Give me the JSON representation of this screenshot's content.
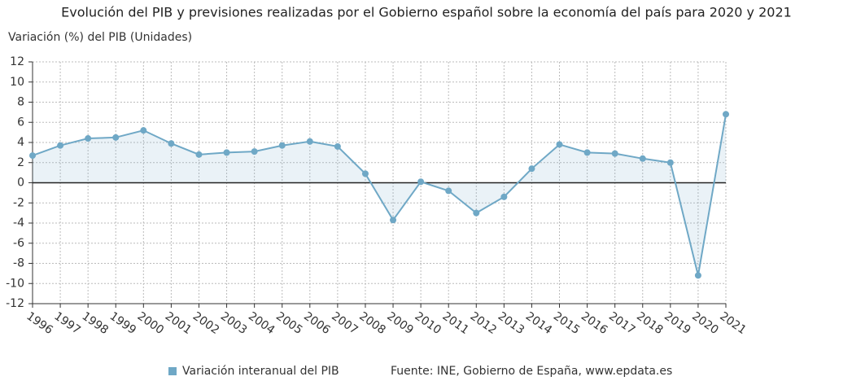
{
  "chart_data": {
    "type": "line",
    "title": "Evolución del PIB y previsiones realizadas por el Gobierno español sobre la economía del país para 2020 y 2021",
    "y_label": "Variación (%) del PIB (Unidades)",
    "source": "Fuente: INE, Gobierno de España, www.epdata.es",
    "categories": [
      "1996",
      "1997",
      "1998",
      "1999",
      "2000",
      "2001",
      "2002",
      "2003",
      "2004",
      "2005",
      "2006",
      "2007",
      "2008",
      "2009",
      "2010",
      "2011",
      "2012",
      "2013",
      "2014",
      "2015",
      "2016",
      "2017",
      "2018",
      "2019",
      "2020",
      "2021"
    ],
    "series": [
      {
        "name": "Variación interanual del PIB",
        "color": "#6fa8c6",
        "values": [
          2.7,
          3.7,
          4.4,
          4.5,
          5.2,
          3.9,
          2.8,
          3.0,
          3.1,
          3.7,
          4.1,
          3.6,
          0.9,
          -3.7,
          0.1,
          -0.8,
          -3.0,
          -1.4,
          1.4,
          3.8,
          3.0,
          2.9,
          2.4,
          2.0,
          -9.2,
          6.8
        ]
      }
    ],
    "ylim": [
      -12,
      12
    ],
    "yticks": [
      -12,
      -10,
      -8,
      -6,
      -4,
      -2,
      0,
      2,
      4,
      6,
      8,
      10,
      12
    ],
    "grid": true
  }
}
